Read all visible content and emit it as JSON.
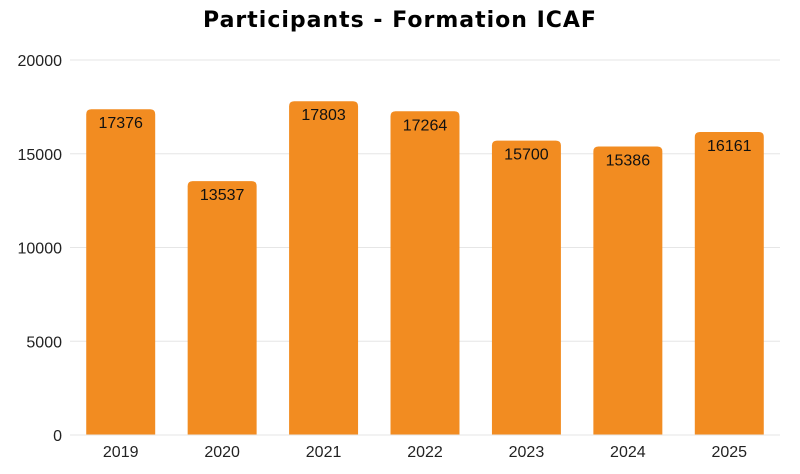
{
  "chart_data": {
    "type": "bar",
    "title": "Participants - Formation ICAF",
    "xlabel": "",
    "ylabel": "",
    "categories": [
      "2019",
      "2020",
      "2021",
      "2022",
      "2023",
      "2024",
      "2025"
    ],
    "values": [
      17376,
      13537,
      17803,
      17264,
      15700,
      15386,
      16161
    ],
    "ylim": [
      0,
      20000
    ],
    "yticks": [
      0,
      5000,
      10000,
      15000,
      20000
    ],
    "grid": true,
    "legend": "none",
    "bar_color": "#F28C21",
    "grid_color": "#E6E6E6",
    "data_labels": true
  }
}
